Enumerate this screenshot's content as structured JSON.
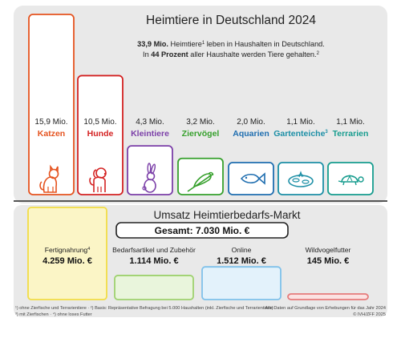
{
  "chart_data": {
    "type": "bar",
    "title": "Heimtiere in Deutschland 2024",
    "subtitle_line1_pre": "33,9 Mio.",
    "subtitle_line1_post": " Heimtiere",
    "subtitle_line1_sup": "1",
    "subtitle_line1_end": " leben in Haushalten in Deutschland.",
    "subtitle_line2_pre": "In ",
    "subtitle_line2_bold": "44 Prozent",
    "subtitle_line2_post": " aller Haushalte werden Tiere gehalten.",
    "subtitle_line2_sup": "2",
    "unit": "Mio.",
    "ylim": [
      0,
      15.9
    ],
    "categories": [
      {
        "name": "Katzen",
        "value": 15.9,
        "label": "15,9 Mio.",
        "sup": "",
        "color": "#e5531f",
        "icon": "cat-icon"
      },
      {
        "name": "Hunde",
        "value": 10.5,
        "label": "10,5 Mio.",
        "sup": "",
        "color": "#d42222",
        "icon": "dog-icon"
      },
      {
        "name": "Kleintiere",
        "value": 4.3,
        "label": "4,3 Mio.",
        "sup": "",
        "color": "#7b3fa8",
        "icon": "rabbit-icon"
      },
      {
        "name": "Ziervögel",
        "value": 3.2,
        "label": "3,2 Mio.",
        "sup": "",
        "color": "#36a02c",
        "icon": "parrot-icon"
      },
      {
        "name": "Aquarien",
        "value": 2.0,
        "label": "2,0 Mio.",
        "sup": "",
        "color": "#1f6eb0",
        "icon": "fish-icon"
      },
      {
        "name": "Gartenteiche",
        "value": 1.1,
        "label": "1,1 Mio.",
        "sup": "3",
        "color": "#1c8fa6",
        "icon": "pond-icon"
      },
      {
        "name": "Terrarien",
        "value": 1.1,
        "label": "1,1 Mio.",
        "sup": "",
        "color": "#169c8e",
        "icon": "turtle-icon"
      }
    ]
  },
  "market": {
    "title": "Umsatz Heimtierbedarfs-Markt",
    "total": "Gesamt: 7.030 Mio. €",
    "total_value": 7030,
    "items": [
      {
        "label": "Fertignahrung",
        "sup": "4",
        "value_text": "4.259 Mio. €",
        "value": 4259,
        "color": "#f2dd45",
        "fill": "#fbf5c6"
      },
      {
        "label": "Bedarfsartikel und Zubehör",
        "sup": "",
        "value_text": "1.114 Mio. €",
        "value": 1114,
        "color": "#9fd16f",
        "fill": "#e9f5dc"
      },
      {
        "label": "Online",
        "sup": "",
        "value_text": "1.512 Mio. €",
        "value": 1512,
        "color": "#7fc1ea",
        "fill": "#e3f2fb"
      },
      {
        "label": "Wildvogelfutter",
        "sup": "",
        "value_text": "145 Mio. €",
        "value": 145,
        "color": "#e57b7b",
        "fill": "#fbe2e2"
      }
    ]
  },
  "footer": {
    "left_line1": "¹) ohne Zierfische und Terrarientiere · ²) Basis: Repräsentative Befragung bei 5.000 Haushalten (inkl. Zierfische und Terrarientiere)",
    "left_line2": "³) mit Zierfischen · ⁴) ohne loses Futter",
    "right_line1": "Alle Daten auf Grundlage von Erhebungen für das Jahr 2024",
    "right_line2": "© IVH/ZFF 2025"
  }
}
